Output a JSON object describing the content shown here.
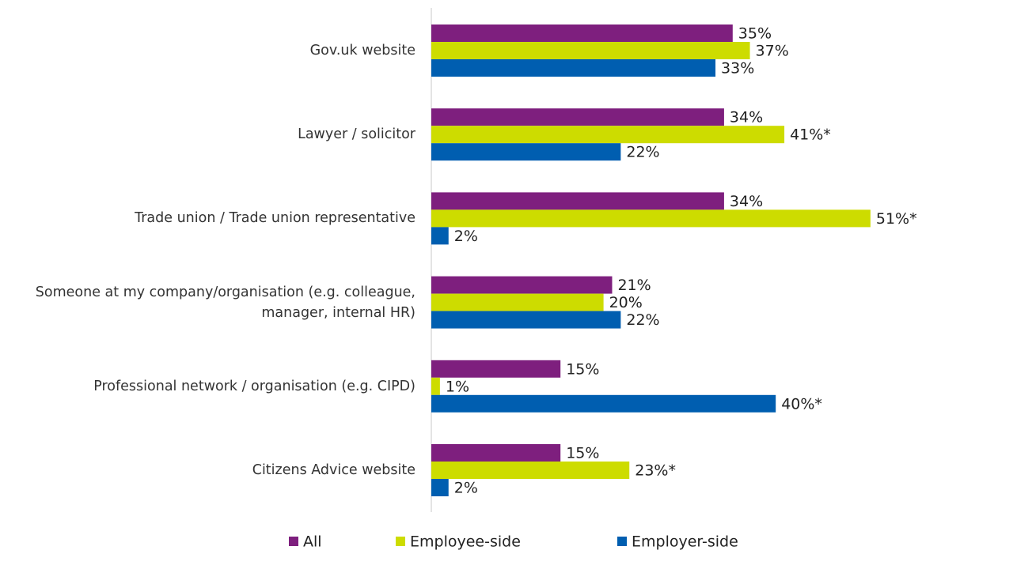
{
  "chart_data": {
    "type": "hbar",
    "categories": [
      "Gov.uk website",
      "Lawyer / solicitor",
      "Trade union / Trade union representative",
      "Someone at my company/organisation (e.g. colleague, manager, internal HR)",
      "Professional network / organisation (e.g. CIPD)",
      "Citizens Advice website"
    ],
    "series": [
      {
        "name": "All",
        "color": "#7e1f7e",
        "values": [
          35,
          34,
          34,
          21,
          15,
          15
        ],
        "value_labels": [
          "35%",
          "34%",
          "34%",
          "21%",
          "15%",
          "15%"
        ]
      },
      {
        "name": "Employee-side",
        "color": "#cddc00",
        "values": [
          37,
          41,
          51,
          20,
          1,
          23
        ],
        "value_labels": [
          "37%",
          "41%*",
          "51%*",
          "20%",
          "1%",
          "23%*"
        ]
      },
      {
        "name": "Employer-side",
        "color": "#005eb0",
        "values": [
          33,
          22,
          2,
          22,
          40,
          2
        ],
        "value_labels": [
          "33%",
          "22%",
          "2%",
          "22%",
          "40%*",
          "2%"
        ]
      }
    ],
    "legend": "bottom"
  }
}
